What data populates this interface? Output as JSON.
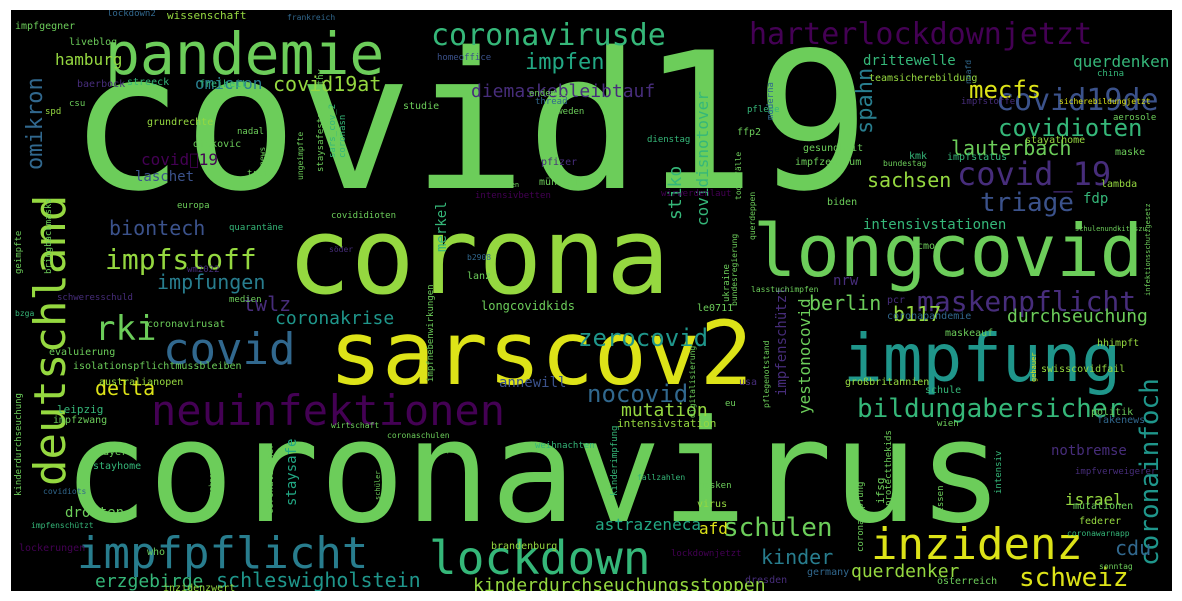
{
  "palette": {
    "green": "#6ccd5a",
    "lightgreen": "#95d840",
    "yellow": "#dde318",
    "teal": "#1f968b",
    "tealblue": "#287d8e",
    "blue": "#31688e",
    "purple": "#440154",
    "indigo": "#472d7b",
    "slate": "#3b528b",
    "mint": "#35b779",
    "seagreen": "#22a884"
  },
  "words": {
    "covid19": "covid19",
    "coronavirus": "coronavirus",
    "corona": "corona",
    "sarscov2": "sarscov2",
    "longcovid": "longcovid",
    "pandemie": "pandemie",
    "impfung": "impfung",
    "deutschland": "deutschland",
    "neuinfektionen": "neuinfektionen",
    "lockdown": "lockdown",
    "impfpflicht": "impfpflicht",
    "inzidenz": "inzidenz",
    "covid": "covid",
    "harterlockdownjetzt": "harterlockdownjetzt",
    "coronavirusde": "coronavirusde",
    "covid19de": "covid19de",
    "covid_19": "covid_19",
    "covidioten": "covidioten",
    "triage": "triage",
    "impfstoff": "impfstoff",
    "rki": "rki",
    "bildungabersicher": "bildungabersicher",
    "schulen": "schulen",
    "schweiz": "schweiz",
    "kinderdurchseuchungsstoppen": "kinderdurchseuchungsstoppen",
    "schleswigholstein": "schleswigholstein",
    "nocovid": "nocovid",
    "zerocovid": "zerocovid",
    "maskenpflicht": "maskenpflicht",
    "coronainfoch": "coronainfoch",
    "impfen": "impfen",
    "covid19at": "covid19at",
    "omikron": "omikron",
    "omicron": "omicron",
    "mecfs": "mecfs",
    "diemaskebleibtauf": "diemaskebleibtauf",
    "spahn": "spahn",
    "lauterbach": "lauterbach",
    "sachsen": "sachsen",
    "biontech": "biontech",
    "impfungen": "impfungen",
    "twlz": "twlz",
    "coronakrise": "coronakrise",
    "berlin": "berlin",
    "b117": "b117",
    "durchseuchung": "durchseuchung",
    "delta": "delta",
    "mutation": "mutation",
    "kinder": "kinder",
    "querdenker": "querdenker",
    "cdu": "cdu",
    "erzgebirge": "erzgebirge",
    "astrazeneca": "astrazeneca",
    "afd": "afd",
    "israel": "israel",
    "querdenken": "querdenken",
    "covid_19_alt": "covid⃣19",
    "stiko": "stiko",
    "covidisnotover": "covidisnotover",
    "drittewelle": "drittewelle",
    "hamburg": "hamburg",
    "intensivstationen": "intensivstationen",
    "fdp": "fdp",
    "merkel": "merkel",
    "laschet": "laschet",
    "annewill": "annewill",
    "yestonocovid": "yestonocovid",
    "impfenschuetzt": "impfenschützt",
    "notbremse": "notbremse",
    "staysafe": "staysafe",
    "drosten": "drosten",
    "nrw": "nrw",
    "longcovidkids": "longcovidkids",
    "intensivstation": "intensivstation",
    "coronavirusat": "coronavirusat",
    "isolationspflichtmussbleiben": "isolationspflichtmussbleiben",
    "evaluierung": "evaluierung",
    "australianopen": "australianopen",
    "leipzig": "leipzig",
    "impfzwang": "impfzwang",
    "bayern": "bayern",
    "stayhome": "stayhome",
    "brandenburg": "brandenburg",
    "virus": "virus",
    "who": "who",
    "inzidenzwert": "inzidenzwert",
    "lockerungen": "lockerungen",
    "dresden": "dresden",
    "germany": "germany",
    "oesterreich": "österreich",
    "sonntag": "sonntag",
    "federer": "federer",
    "mutationen": "mutationen",
    "politik": "politik",
    "fakenews": "fakenews",
    "swisscovidfail": "swisscovidfail",
    "schule": "schule",
    "grossbritannien": "großbritannien",
    "hhimpft": "hhimpft",
    "maskeauf": "maskeauf",
    "coronapandemie": "coronapandemie",
    "pcr": "pcr",
    "ecmo": "ecmo",
    "biden": "biden",
    "lambda": "lambda",
    "kmk": "kmk",
    "impfstatus": "impfstatus",
    "impfzentrum": "impfzentrum",
    "gesundheit": "gesundheit",
    "stayathome": "stayathome",
    "maske": "maske",
    "ffp2": "ffp2",
    "pfizer": "pfizer",
    "muenchen": "münchen",
    "le0711": "le0711",
    "lanz": "lanz",
    "b2908": "b2908",
    "impfgegner": "impfgegner",
    "lockdown2": "lockdown2",
    "wissenschaft": "wissenschaft",
    "frankreich": "frankreich",
    "liveblog": "liveblog",
    "baerbock": "baerbock",
    "streeck": "streeck",
    "freiheit": "freiheit",
    "homeoffice": "homeoffice",
    "teamsicherebildung": "teamsicherebildung",
    "china": "china",
    "noafd": "noafd",
    "csu": "csu",
    "spd": "spd",
    "studie": "studie",
    "endemie": "endemie",
    "thread": "thread",
    "schweden": "schweden",
    "pflege": "pflege",
    "moderna": "moderna",
    "impfstoffe": "impfstoffe",
    "sicherebildungjetzt": "sicherebildungjetzt",
    "aerosole": "aerosole",
    "grundrechte": "grundrechte",
    "djokovic": "djokovic",
    "nadal": "nadal",
    "news": "news",
    "trump": "trump",
    "dienstag": "dienstag",
    "europa": "europa",
    "quarantaene": "quarantäne",
    "covididioten": "covididioten",
    "intensivbetten": "intensivbetten",
    "wirwerdenlaut": "wirwerdenlaut",
    "wm2022": "wm2022",
    "medien": "medien",
    "wirtschaft": "wirtschaft",
    "coronaschulen": "coronaschulen",
    "rlp": "rlp",
    "weihnachten": "weihnachten",
    "kinderimpfung": "kinderimpfung",
    "fallzahlen": "fallzahlen",
    "masken": "masken",
    "wien": "wien",
    "eu": "eu",
    "usa": "usa",
    "digitalisierung": "digitalisierung",
    "impfverweigerer": "impfverweigerer",
    "covidiots": "covidiots",
    "coronawarnapp": "coronawarnapp",
    "lockdownjetzt": "lockdownjetzt",
    "covid19deutschland": "covid19deutschland",
    "geimpfte": "geimpfte",
    "bringbackmasks": "bringbackmasks",
    "kinderdurchseuchung": "kinderdurchseuchung",
    "ukraine": "ukraine",
    "bundesregierung": "bundesregierung",
    "hessen": "hessen",
    "ifsg": "ifsg",
    "protectthekids": "protectthekids",
    "coronaimpfung": "coronaimpfung",
    "intensiv": "intensiv",
    "pflegenotstand": "pflegenotstand",
    "staysafestayhealthy": "staysafestayhealthy",
    "sars_cov_2": "sars_cov_2",
    "coronasn": "coronasn",
    "ungeimpfte": "ungeimpfte",
    "todesfaelle": "todesfälle",
    "bundestag": "bundestag",
    "querdeppen": "querdeppen",
    "lasstuchimpfen": "lasstuchimpfen",
    "schulenundkitaszu": "schulenundkitaszu",
    "infektionsschutzgesetz": "infektionsschutzgesetz",
    "coronaleugner": "coronaleugner",
    "impfnebenwirkungen": "impfnebenwirkungen",
    "massnahmen": "massnahmen",
    "schueler": "schüler",
    "gebauer": "gebauer",
    "schwerverschuld": "schweresschuld",
    "soeder": "söder",
    "inzidenzen": "inzidenzen",
    "bzga": "bzga"
  }
}
